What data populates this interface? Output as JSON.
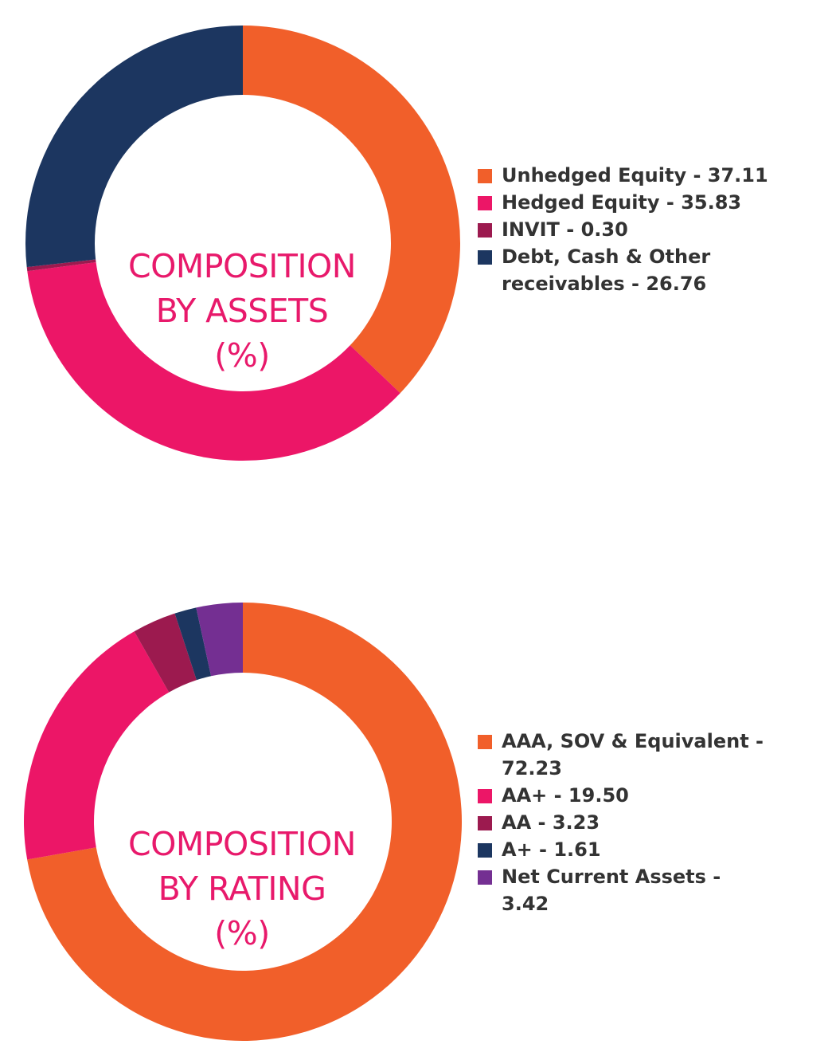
{
  "chart_data": [
    {
      "type": "pie",
      "style": "donut",
      "title": [
        "COMPOSITION",
        "BY ASSETS",
        "(%)"
      ],
      "legend_position": "right",
      "series": [
        {
          "label": "Unhedged Equity - 37.11",
          "name": "Unhedged Equity",
          "value": 37.11,
          "color": "#f15f2a"
        },
        {
          "label": "Hedged Equity - 35.83",
          "name": "Hedged Equity",
          "value": 35.83,
          "color": "#ec1667"
        },
        {
          "label": "INVIT - 0.30",
          "name": "INVIT",
          "value": 0.3,
          "color": "#9c1a4f"
        },
        {
          "label": "Debt, Cash & Other receivables - 26.76",
          "name": "Debt, Cash & Other receivables",
          "value": 26.76,
          "color": "#1c3660"
        }
      ]
    },
    {
      "type": "pie",
      "style": "donut",
      "title": [
        "COMPOSITION",
        "BY RATING",
        "(%)"
      ],
      "legend_position": "right",
      "series": [
        {
          "label": "AAA, SOV & Equivalent - 72.23",
          "name": "AAA, SOV & Equivalent",
          "value": 72.23,
          "color": "#f15f2a"
        },
        {
          "label": "AA+ - 19.50",
          "name": "AA+",
          "value": 19.5,
          "color": "#ec1667"
        },
        {
          "label": "AA - 3.23",
          "name": "AA",
          "value": 3.23,
          "color": "#9c1a4f"
        },
        {
          "label": "A+ - 1.61",
          "name": "A+",
          "value": 1.61,
          "color": "#1c3660"
        },
        {
          "label": "Net Current Assets - 3.42",
          "name": "Net Current Assets",
          "value": 3.42,
          "color": "#742f92"
        }
      ]
    }
  ]
}
